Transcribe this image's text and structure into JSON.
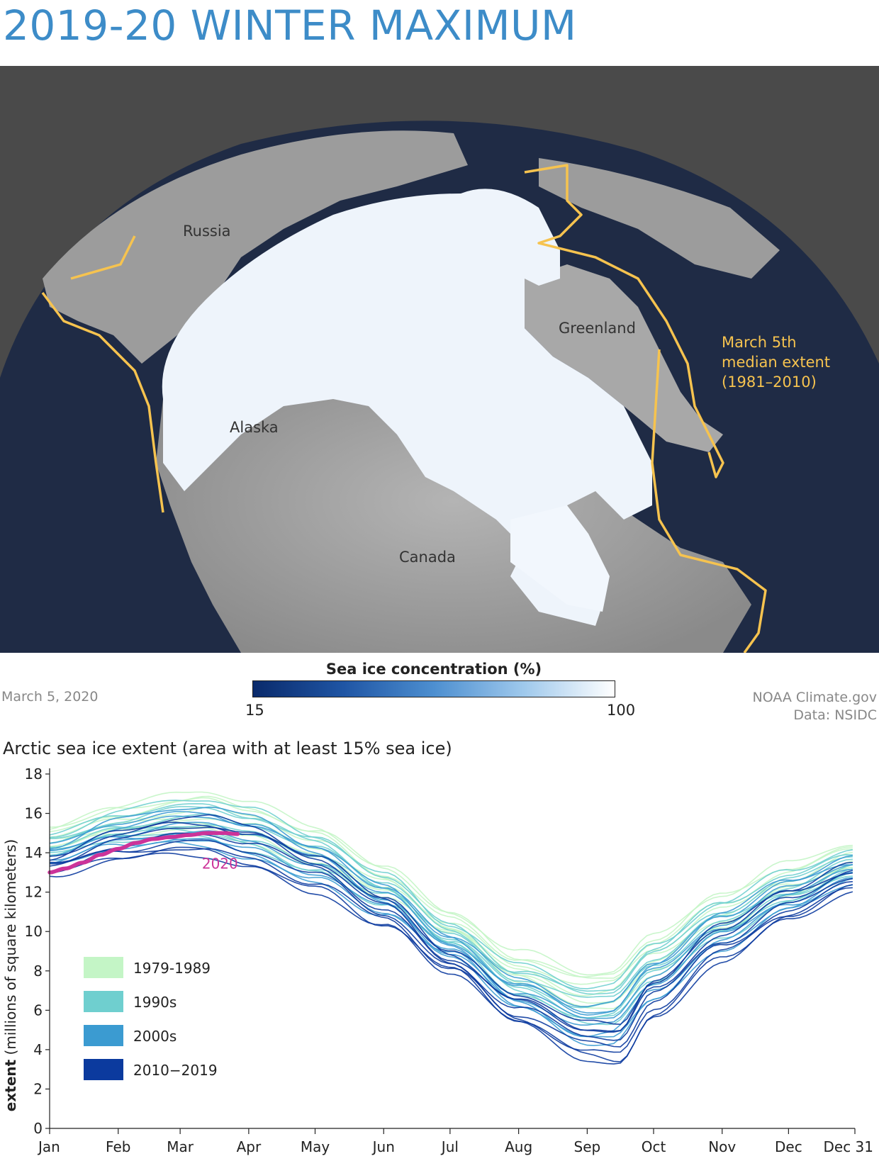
{
  "header": {
    "title": "2019-20 WINTER MAXIMUM"
  },
  "map": {
    "labels": {
      "russia": "Russia",
      "greenland": "Greenland",
      "alaska": "Alaska",
      "canada": "Canada"
    },
    "median_label": [
      "March 5th",
      "median extent",
      "(1981–2010)"
    ],
    "colors": {
      "ocean": "#1f2b45",
      "land": "#9a9a9a",
      "ice": "#eef4fb",
      "median_line": "#f6c34f",
      "background": "#4a4a4a"
    }
  },
  "colorbar": {
    "title": "Sea ice concentration (%)",
    "min": "15",
    "max": "100"
  },
  "footer": {
    "date": "March 5, 2020",
    "credit": "NOAA Climate.gov",
    "source": "Data: NSIDC"
  },
  "chart_data": {
    "type": "line",
    "title": "Arctic sea ice extent (area with at least 15% sea ice)",
    "ylabel": "extent (millions of square kilometers)",
    "ylabel_bold": "extent",
    "ylabel_rest": " (millions of square kilometers)",
    "xlabel": "",
    "ylim": [
      0,
      18
    ],
    "yticks": [
      0,
      2,
      4,
      6,
      8,
      10,
      12,
      14,
      16,
      18
    ],
    "x_ticks": [
      {
        "label": "Jan",
        "day": 1
      },
      {
        "label": "Feb",
        "day": 32
      },
      {
        "label": "Mar",
        "day": 60
      },
      {
        "label": "Apr",
        "day": 91
      },
      {
        "label": "May",
        "day": 121
      },
      {
        "label": "Jun",
        "day": 152
      },
      {
        "label": "Jul",
        "day": 182
      },
      {
        "label": "Aug",
        "day": 213
      },
      {
        "label": "Sep",
        "day": 244
      },
      {
        "label": "Oct",
        "day": 274
      },
      {
        "label": "Nov",
        "day": 305
      },
      {
        "label": "Dec",
        "day": 335
      },
      {
        "label": "Dec 31",
        "day": 365
      }
    ],
    "grid": false,
    "legend_position": "bottom-left",
    "legend": [
      {
        "label": "1979-1989",
        "color": "#c4f5c6"
      },
      {
        "label": "1990s",
        "color": "#6fcfcf"
      },
      {
        "label": "2000s",
        "color": "#3b9bd1"
      },
      {
        "label": "2010−2019",
        "color": "#0b3a9e"
      }
    ],
    "decade_curves": [
      {
        "decade": "1979-1989",
        "color": "#c4f5c6",
        "days": [
          1,
          32,
          60,
          71,
          91,
          121,
          152,
          182,
          213,
          244,
          254,
          274,
          305,
          335,
          365
        ],
        "values": [
          14.8,
          15.6,
          16.0,
          16.1,
          15.6,
          14.4,
          12.6,
          10.4,
          8.2,
          7.0,
          7.1,
          8.9,
          11.0,
          12.6,
          13.8
        ]
      },
      {
        "decade": "1990s",
        "color": "#6fcfcf",
        "days": [
          1,
          32,
          60,
          71,
          91,
          121,
          152,
          182,
          213,
          244,
          254,
          274,
          305,
          335,
          365
        ],
        "values": [
          14.4,
          15.3,
          15.7,
          15.7,
          15.2,
          14.0,
          12.2,
          9.8,
          7.5,
          6.3,
          6.4,
          8.4,
          10.6,
          12.2,
          13.5
        ]
      },
      {
        "decade": "2000s",
        "color": "#3b9bd1",
        "days": [
          1,
          32,
          60,
          71,
          91,
          121,
          152,
          182,
          213,
          244,
          254,
          274,
          305,
          335,
          365
        ],
        "values": [
          13.9,
          14.9,
          15.3,
          15.3,
          14.8,
          13.5,
          11.6,
          9.2,
          6.8,
          5.3,
          5.4,
          7.5,
          10.0,
          11.8,
          13.1
        ]
      },
      {
        "decade": "2010−2019",
        "color": "#0b3a9e",
        "days": [
          1,
          32,
          60,
          71,
          91,
          121,
          152,
          182,
          213,
          244,
          258,
          274,
          305,
          335,
          365
        ],
        "values": [
          13.3,
          14.3,
          14.8,
          14.8,
          14.3,
          13.0,
          11.0,
          8.4,
          6.0,
          4.5,
          4.3,
          6.6,
          9.4,
          11.3,
          12.7
        ]
      }
    ],
    "series": [
      {
        "name": "2020",
        "color": "#cc3399",
        "days": [
          1,
          8,
          16,
          24,
          32,
          40,
          48,
          56,
          64,
          72,
          80,
          86
        ],
        "values": [
          13.0,
          13.2,
          13.5,
          13.9,
          14.2,
          14.5,
          14.7,
          14.8,
          14.9,
          15.0,
          15.0,
          14.95
        ]
      }
    ],
    "label_2020": "2020"
  }
}
